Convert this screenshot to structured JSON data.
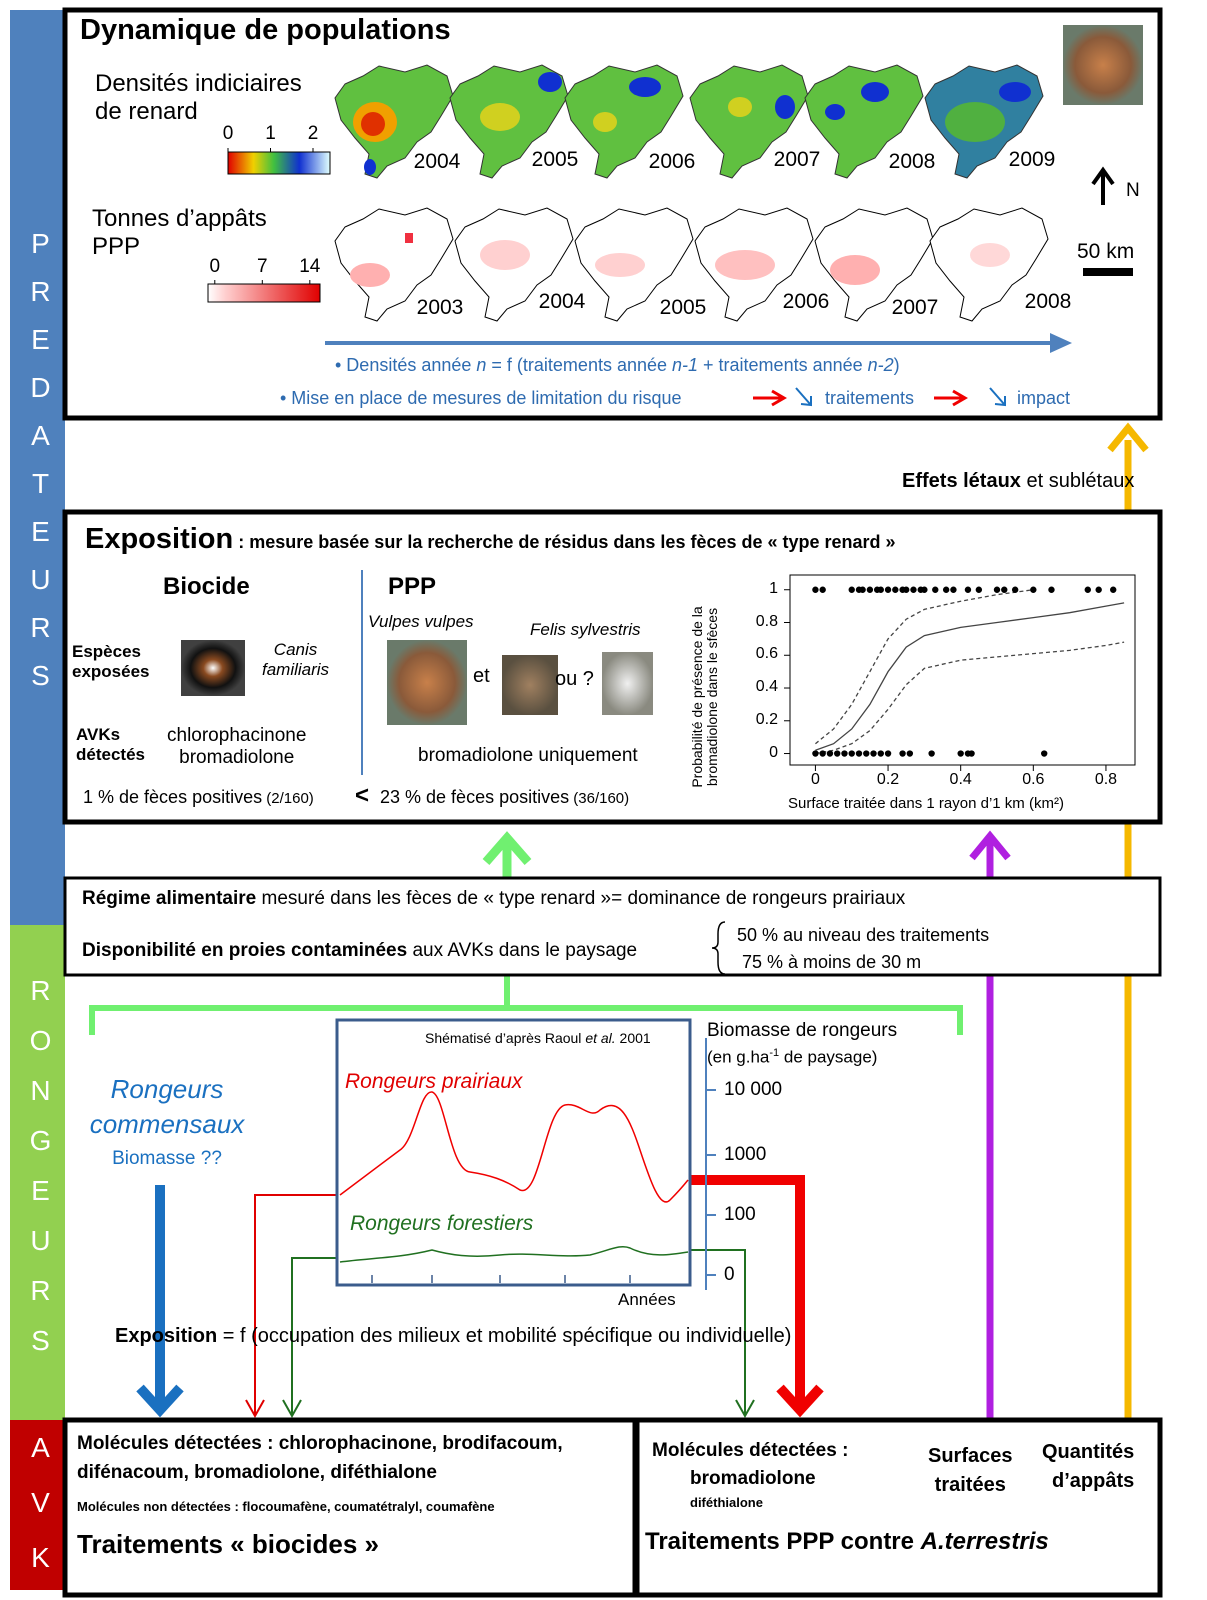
{
  "side_labels": [
    "PREDATEURS",
    "RONGEURS",
    "AVK"
  ],
  "populations": {
    "title": "Dynamique de populations",
    "density_label": "Densités indiciaires\nde renard",
    "density_scale": {
      "ticks": [
        0,
        1,
        2
      ],
      "lim": [
        0,
        2.4
      ]
    },
    "density_years": [
      "2004",
      "2005",
      "2006",
      "2007",
      "2008",
      "2009"
    ],
    "bait_label": "Tonnes d’appâts\nPPP",
    "bait_scale": {
      "ticks": [
        0,
        7,
        14
      ],
      "lim": [
        -1,
        15.5
      ]
    },
    "bait_years": [
      "2003",
      "2004",
      "2005",
      "2006",
      "2007",
      "2008"
    ],
    "north": "N",
    "scale_bar": "50 km",
    "line1": [
      "• Densités année ",
      "n",
      " = f (traitements année ",
      "n-1",
      " + traitements année ",
      "n-2",
      ")"
    ],
    "line2": [
      "• Mise en place de mesures de limitation du risque",
      "traitements",
      "impact"
    ]
  },
  "effects": [
    "Effets létaux",
    " et sublétaux"
  ],
  "exposition": {
    "title": "Exposition",
    "subtitle": " : mesure basée sur la recherche de résidus dans les fèces de « type renard »",
    "biocide": "Biocide",
    "ppp": "PPP",
    "species_label": "Espèces\nexposées",
    "canis": "Canis\nfamiliaris",
    "vulpes": "Vulpes vulpes",
    "felis": "Felis sylvestris",
    "et": "et",
    "ou": "ou ?",
    "avk_label": "AVKs\ndétectés",
    "biocide_molecules": "chlorophacinone\nbromadiolone",
    "ppp_molecules": "bromadiolone uniquement",
    "biocide_rate": [
      "1 % de fèces positives",
      " (2/160)"
    ],
    "less": "<",
    "ppp_rate": [
      "23 % de fèces positives",
      " (36/160)"
    ]
  },
  "exposure_chart": {
    "type": "scatter",
    "ylabel": "Probabilité de présence de la\nbromadiolone dans le sfèces",
    "xlabel": "Surface traitée dans 1 rayon d’1 km (km²)",
    "xlim": [
      -0.07,
      0.88
    ],
    "ylim": [
      -0.07,
      1.09
    ],
    "xticks": [
      0,
      0.2,
      0.4,
      0.6,
      0.8
    ],
    "yticks": [
      0,
      0.2,
      0.4,
      0.6,
      0.8,
      1
    ],
    "points": {
      "x": [
        0,
        0.02,
        0.1,
        0.12,
        0.13,
        0.15,
        0.17,
        0.18,
        0.2,
        0.22,
        0.24,
        0.25,
        0.27,
        0.29,
        0.3,
        0.33,
        0.36,
        0.38,
        0.42,
        0.45,
        0.5,
        0.52,
        0.55,
        0.6,
        0.65,
        0.75,
        0.78,
        0.82,
        0,
        0.02,
        0.04,
        0.06,
        0.08,
        0.1,
        0.12,
        0.14,
        0.16,
        0.18,
        0.2,
        0.24,
        0.26,
        0.32,
        0.4,
        0.42,
        0.43,
        0.63
      ],
      "y": [
        1,
        1,
        1,
        1,
        1,
        1,
        1,
        1,
        1,
        1,
        1,
        1,
        1,
        1,
        1,
        1,
        1,
        1,
        1,
        1,
        1,
        1,
        1,
        1,
        1,
        1,
        1,
        1,
        0,
        0,
        0,
        0,
        0,
        0,
        0,
        0,
        0,
        0,
        0,
        0,
        0,
        0,
        0,
        0,
        0,
        0
      ]
    },
    "curve_x": [
      0,
      0.05,
      0.1,
      0.15,
      0.2,
      0.25,
      0.3,
      0.4,
      0.5,
      0.6,
      0.7,
      0.8,
      0.85
    ],
    "fit": [
      0.02,
      0.06,
      0.15,
      0.3,
      0.5,
      0.65,
      0.72,
      0.77,
      0.8,
      0.83,
      0.86,
      0.9,
      0.92
    ],
    "upper": [
      0.06,
      0.15,
      0.3,
      0.5,
      0.7,
      0.82,
      0.88,
      0.93,
      0.97,
      1.0,
      null,
      null,
      null
    ],
    "lower": [
      0,
      0.02,
      0.06,
      0.14,
      0.27,
      0.42,
      0.52,
      0.57,
      0.59,
      0.61,
      0.63,
      0.66,
      0.68
    ]
  },
  "diet": {
    "line1": [
      "Régime alimentaire",
      "  mesuré dans les fèces de « type renard »= dominance de rongeurs prairiaux"
    ],
    "line2": [
      "Disponibilité en proies  contaminées",
      " aux AVKs dans le paysage"
    ],
    "brace1": "50 % au niveau des traitements",
    "brace2": "75 % à moins de 30 m"
  },
  "rodents": {
    "commensal": "Rongeurs\ncommensaux",
    "biomass_q": "Biomasse ??",
    "source": [
      "Shématisé d’après Raoul ",
      "et al.",
      " 2001"
    ],
    "prairie": "Rongeurs prairiaux",
    "forest": "Rongeurs forestiers",
    "years": "Années",
    "axis_title": "Biomasse de rongeurs",
    "axis_unit": [
      "(en g.ha",
      "-1",
      " de paysage)"
    ],
    "yticks": [
      {
        "value": 10000,
        "label": "10 000"
      },
      1000,
      100,
      0
    ],
    "exposition": [
      "Exposition",
      " = f (occupation des milieux et mobilité spécifique ou individuelle)"
    ]
  },
  "biocides": {
    "detected": "Molécules détectées : chlorophacinone, brodifacoum,\ndifénacoum,  bromadiolone, diféthialone",
    "not_detected": "Molécules non détectées : flocoumafène, coumatétralyl, coumafène",
    "title": "Traitements « biocides »"
  },
  "ppp": {
    "detected": "Molécules détectées :",
    "mol1": "bromadiolone",
    "mol2": "diféthialone",
    "surfaces": "Surfaces\ntraitées",
    "quantities": "Quantités\nd’appâts",
    "title": [
      "Traitements  PPP contre ",
      "A.terrestris"
    ]
  }
}
